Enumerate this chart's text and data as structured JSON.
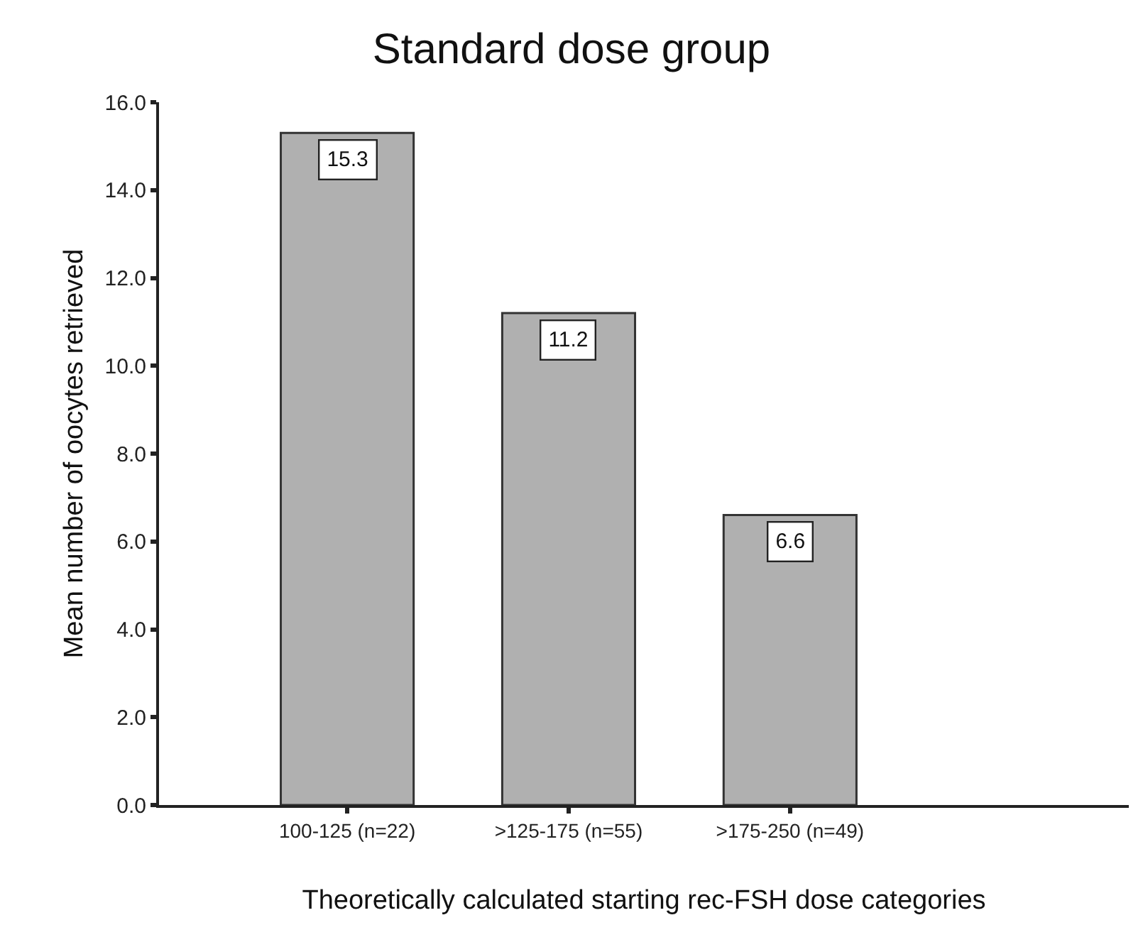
{
  "chart_data": {
    "type": "bar",
    "title": "Standard dose group",
    "xlabel": "Theoretically calculated starting rec-FSH dose categories",
    "ylabel": "Mean number of oocytes retrieved",
    "categories": [
      "100-125 (n=22)",
      ">125-175 (n=55)",
      ">175-250 (n=49)"
    ],
    "values": [
      15.3,
      11.2,
      6.6
    ],
    "color": "#b0b0b0",
    "ylim": [
      0,
      16
    ],
    "yticks": [
      {
        "value": 0,
        "label": "0.0"
      },
      {
        "value": 2,
        "label": "2.0"
      },
      {
        "value": 4,
        "label": "4.0"
      },
      {
        "value": 6,
        "label": "6.0"
      },
      {
        "value": 8,
        "label": "8.0"
      },
      {
        "value": 10,
        "label": "10.0"
      },
      {
        "value": 12,
        "label": "12.0"
      },
      {
        "value": 14,
        "label": "14.0"
      },
      {
        "value": 16,
        "label": "16.0"
      }
    ],
    "data_labels": true
  }
}
